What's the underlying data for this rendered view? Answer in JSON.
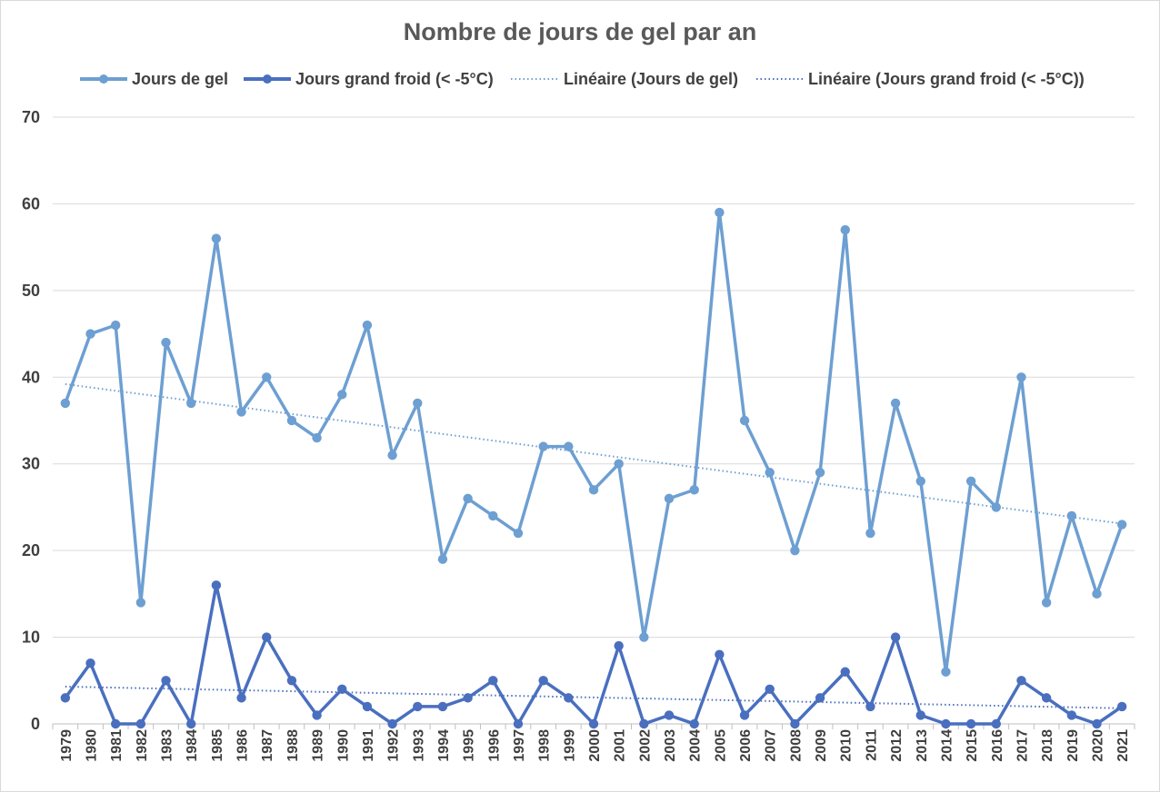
{
  "chart_data": {
    "type": "line",
    "title": "Nombre de jours de gel par an",
    "xlabel": "",
    "ylabel": "",
    "ylim": [
      0,
      70
    ],
    "yticks": [
      0,
      10,
      20,
      30,
      40,
      50,
      60,
      70
    ],
    "grid": true,
    "legend_position": "top",
    "categories": [
      "1979",
      "1980",
      "1981",
      "1982",
      "1983",
      "1984",
      "1985",
      "1986",
      "1987",
      "1988",
      "1989",
      "1990",
      "1991",
      "1992",
      "1993",
      "1994",
      "1995",
      "1996",
      "1997",
      "1998",
      "1999",
      "2000",
      "2001",
      "2002",
      "2003",
      "2004",
      "2005",
      "2006",
      "2007",
      "2008",
      "2009",
      "2010",
      "2011",
      "2012",
      "2013",
      "2014",
      "2015",
      "2016",
      "2017",
      "2018",
      "2019",
      "2020",
      "2021"
    ],
    "series": [
      {
        "name": "Jours de gel",
        "color": "#6d9fd2",
        "values": [
          37,
          45,
          46,
          14,
          44,
          37,
          56,
          36,
          40,
          35,
          33,
          38,
          46,
          31,
          37,
          19,
          26,
          24,
          22,
          32,
          32,
          27,
          30,
          10,
          26,
          27,
          59,
          35,
          29,
          20,
          29,
          57,
          22,
          37,
          28,
          6,
          28,
          25,
          40,
          14,
          24,
          15,
          23
        ]
      },
      {
        "name": "Jours grand froid (< -5°C)",
        "color": "#4a6fbf",
        "values": [
          3,
          7,
          0,
          0,
          5,
          0,
          16,
          3,
          10,
          5,
          1,
          4,
          2,
          0,
          2,
          2,
          3,
          5,
          0,
          5,
          3,
          0,
          9,
          0,
          1,
          0,
          8,
          1,
          4,
          0,
          3,
          6,
          2,
          10,
          1,
          0,
          0,
          0,
          5,
          3,
          1,
          0,
          2
        ]
      }
    ],
    "trendlines": [
      {
        "name": "Linéaire (Jours de gel)",
        "color": "#6d9fd2",
        "start": 39.2,
        "end": 23.1
      },
      {
        "name": "Linéaire (Jours grand froid (< -5°C))",
        "color": "#4a6fbf",
        "start": 4.3,
        "end": 1.8
      }
    ]
  }
}
